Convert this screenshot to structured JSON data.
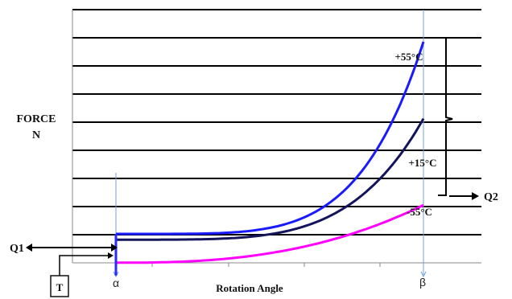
{
  "chart_data": {
    "type": "line",
    "ylabel_line1": "FORCE",
    "ylabel_line2": "N",
    "xlabel": "Rotation Angle",
    "x_markers": [
      {
        "name": "alpha",
        "label": "α"
      },
      {
        "name": "beta",
        "label": "β"
      }
    ],
    "series": [
      {
        "name": "+55°C",
        "color": "#1a1aff",
        "start": [
          0,
          0
        ],
        "end": [
          1,
          1.0
        ],
        "curve_power": 5.0
      },
      {
        "name": "+15°C",
        "color": "#14145a",
        "start": [
          0,
          -0.03
        ],
        "end": [
          1,
          0.6
        ],
        "curve_power": 4.5
      },
      {
        "name": "-55°C",
        "color": "#ff00ff",
        "start": [
          0,
          -0.15
        ],
        "end": [
          1,
          0.15
        ],
        "curve_power": 2.6
      }
    ],
    "annotations": {
      "q1": "Q1",
      "q2": "Q2",
      "t": "T"
    },
    "grid": true
  }
}
